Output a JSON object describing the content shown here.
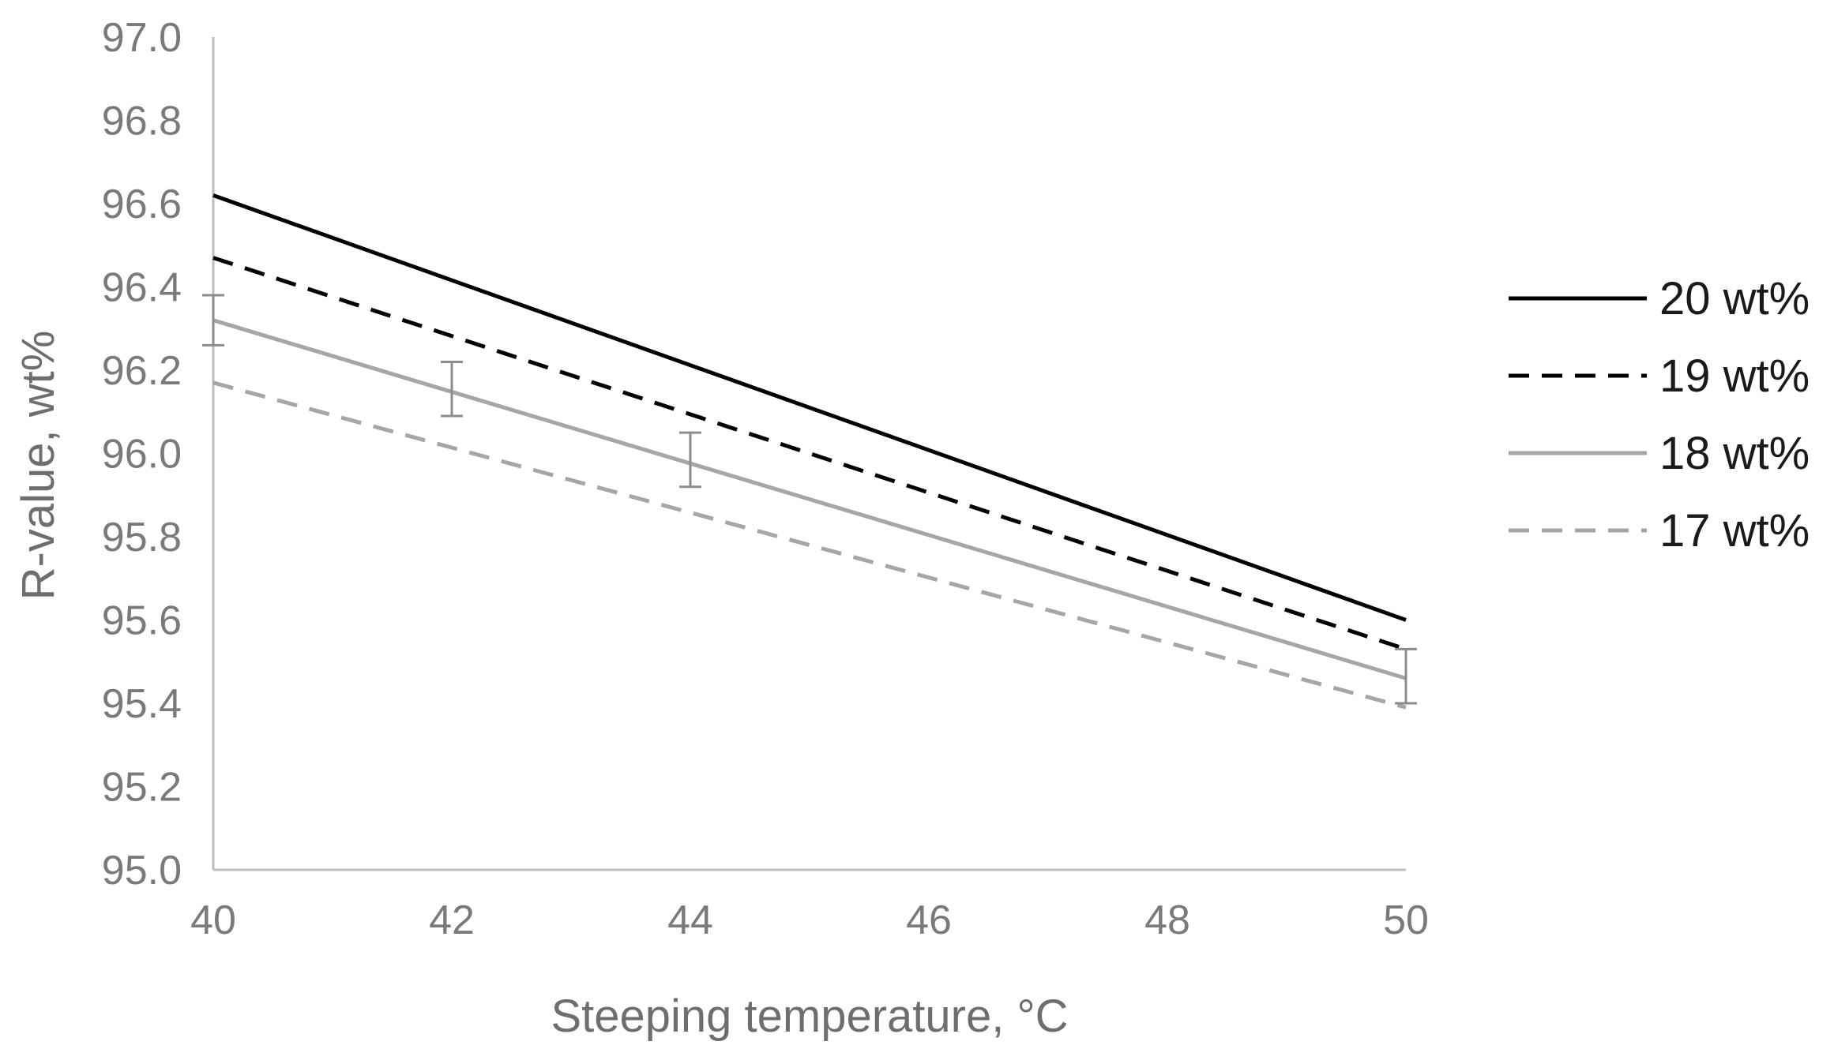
{
  "chart_data": {
    "type": "line",
    "title": "",
    "xlabel": "Steeping temperature, °C",
    "ylabel": "R-value, wt%",
    "xlim": [
      40,
      50
    ],
    "ylim": [
      95.0,
      97.0
    ],
    "x_ticks": [
      "40",
      "42",
      "44",
      "46",
      "48",
      "50"
    ],
    "y_ticks": [
      "95.0",
      "95.2",
      "95.4",
      "95.6",
      "95.8",
      "96.0",
      "96.2",
      "96.4",
      "96.6",
      "96.8",
      "97.0"
    ],
    "grid": false,
    "legend_position": "right",
    "series": [
      {
        "name": "20 wt%",
        "x": [
          40,
          50
        ],
        "y": [
          96.62,
          95.6
        ],
        "color": "#000000",
        "dash": "solid"
      },
      {
        "name": "19 wt%",
        "x": [
          40,
          50
        ],
        "y": [
          96.47,
          95.53
        ],
        "color": "#000000",
        "dash": "dashed"
      },
      {
        "name": "18 wt%",
        "x": [
          40,
          50
        ],
        "y": [
          96.32,
          95.46
        ],
        "color": "#a6a6a6",
        "dash": "solid"
      },
      {
        "name": "17 wt%",
        "x": [
          40,
          50
        ],
        "y": [
          96.17,
          95.39
        ],
        "color": "#a6a6a6",
        "dash": "dashed"
      }
    ],
    "error_bars": [
      {
        "x": 40,
        "low": 96.26,
        "high": 96.38
      },
      {
        "x": 42,
        "low": 96.09,
        "high": 96.22
      },
      {
        "x": 44,
        "low": 95.92,
        "high": 96.05
      },
      {
        "x": 50,
        "low": 95.4,
        "high": 95.53
      }
    ]
  }
}
